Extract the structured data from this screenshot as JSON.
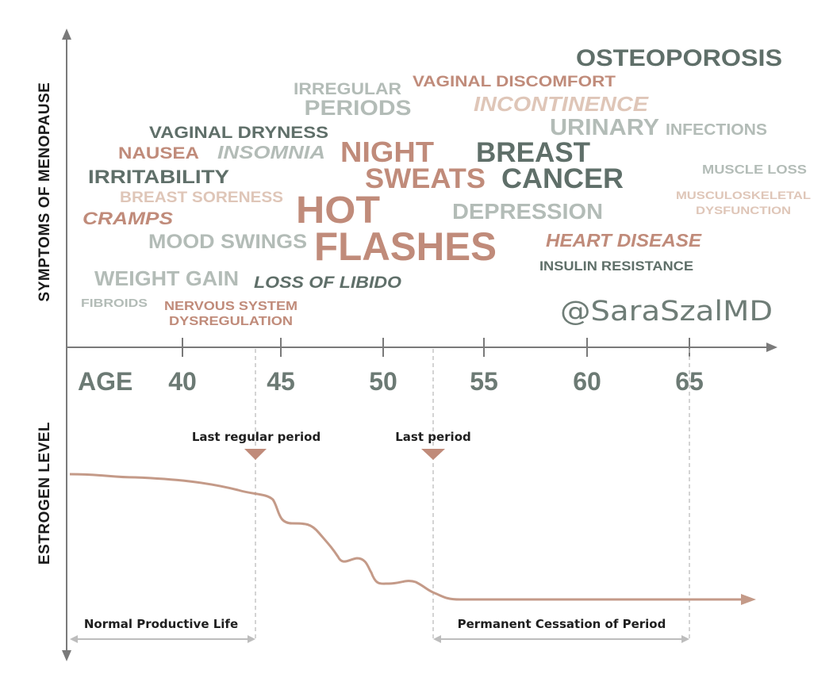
{
  "palette": {
    "dark": "#5f6f69",
    "light": "#b3bcb7",
    "terracotta": "#c08b7a",
    "beige": "#dfc6b8",
    "axis": "#7a7a7a",
    "curve": "#c49a88",
    "guide": "#bdbdbd"
  },
  "axes": {
    "y_top_label": "SYMPTOMS OF MENOPAUSE",
    "y_bottom_label": "ESTROGEN LEVEL",
    "age_label": "AGE",
    "ages": [
      "40",
      "45",
      "50",
      "55",
      "60",
      "65"
    ]
  },
  "symptoms": [
    {
      "id": "osteoporosis",
      "text": "OSTEOPOROSIS",
      "tone": "dark",
      "italic": false
    },
    {
      "id": "irregular",
      "text": "IRREGULAR",
      "tone": "light",
      "italic": false
    },
    {
      "id": "periods",
      "text": "PERIODS",
      "tone": "light",
      "italic": false
    },
    {
      "id": "vaginal-discomfort",
      "text": "VAGINAL DISCOMFORT",
      "tone": "terracotta",
      "italic": false
    },
    {
      "id": "incontinence",
      "text": "INCONTINENCE",
      "tone": "beige",
      "italic": true
    },
    {
      "id": "urinary",
      "text": "URINARY",
      "tone": "light",
      "italic": false
    },
    {
      "id": "infections",
      "text": "INFECTIONS",
      "tone": "light",
      "italic": false
    },
    {
      "id": "vaginal-dryness",
      "text": "VAGINAL DRYNESS",
      "tone": "dark",
      "italic": false
    },
    {
      "id": "nausea",
      "text": "NAUSEA",
      "tone": "terracotta",
      "italic": false
    },
    {
      "id": "insomnia",
      "text": "INSOMNIA",
      "tone": "light",
      "italic": true
    },
    {
      "id": "night",
      "text": "NIGHT",
      "tone": "terracotta",
      "italic": false
    },
    {
      "id": "sweats",
      "text": "SWEATS",
      "tone": "terracotta",
      "italic": false
    },
    {
      "id": "breast",
      "text": "BREAST",
      "tone": "dark",
      "italic": false
    },
    {
      "id": "cancer",
      "text": "CANCER",
      "tone": "dark",
      "italic": false
    },
    {
      "id": "muscle-loss",
      "text": "MUSCLE LOSS",
      "tone": "light",
      "italic": false
    },
    {
      "id": "irritability",
      "text": "IRRITABILITY",
      "tone": "dark",
      "italic": false
    },
    {
      "id": "breast-soreness",
      "text": "BREAST SORENESS",
      "tone": "beige",
      "italic": false
    },
    {
      "id": "hot",
      "text": "HOT",
      "tone": "terracotta",
      "italic": false
    },
    {
      "id": "flashes",
      "text": "FLASHES",
      "tone": "terracotta",
      "italic": false
    },
    {
      "id": "depression",
      "text": "DEPRESSION",
      "tone": "light",
      "italic": false
    },
    {
      "id": "musculoskeletal",
      "text": "MUSCULOSKELETAL",
      "tone": "beige",
      "italic": false
    },
    {
      "id": "dysfunction",
      "text": "DYSFUNCTION",
      "tone": "beige",
      "italic": false
    },
    {
      "id": "cramps",
      "text": "CRAMPS",
      "tone": "terracotta",
      "italic": true
    },
    {
      "id": "mood-swings",
      "text": "MOOD SWINGS",
      "tone": "light",
      "italic": false
    },
    {
      "id": "heart-disease",
      "text": "HEART DISEASE",
      "tone": "terracotta",
      "italic": true
    },
    {
      "id": "insulin-resistance",
      "text": "INSULIN RESISTANCE",
      "tone": "dark",
      "italic": false
    },
    {
      "id": "weight-gain",
      "text": "WEIGHT GAIN",
      "tone": "light",
      "italic": false
    },
    {
      "id": "loss-of-libido",
      "text": "LOSS OF LIBIDO",
      "tone": "dark",
      "italic": true
    },
    {
      "id": "fibroids",
      "text": "FIBROIDS",
      "tone": "light",
      "italic": false
    },
    {
      "id": "nervous-system",
      "text": "NERVOUS SYSTEM",
      "tone": "terracotta",
      "italic": false
    },
    {
      "id": "dysregulation",
      "text": "DYSREGULATION",
      "tone": "terracotta",
      "italic": false
    }
  ],
  "brand": "@SaraSzalMD",
  "markers": {
    "last_regular_period": "Last regular period",
    "last_period": "Last period"
  },
  "phases": {
    "normal": "Normal Productive Life",
    "cessation": "Permanent Cessation of Period"
  }
}
